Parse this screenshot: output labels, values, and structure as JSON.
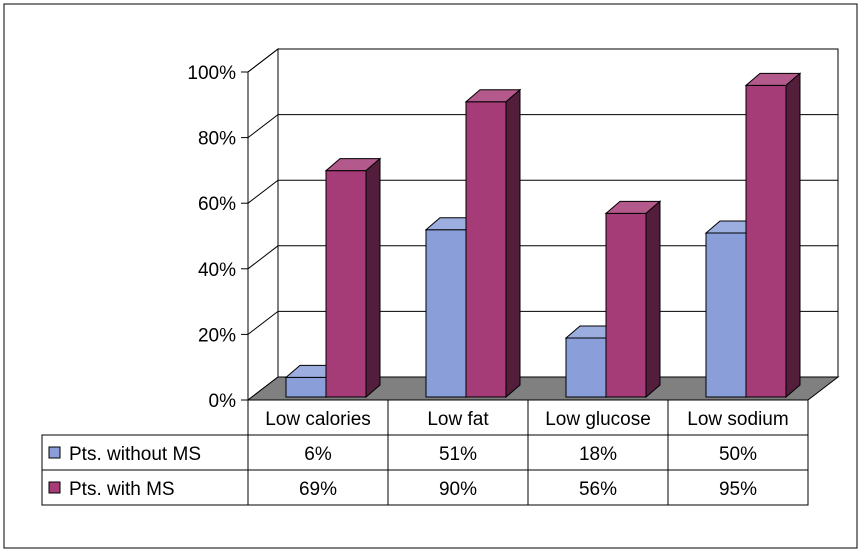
{
  "chart_data": {
    "type": "bar",
    "categories": [
      "Low calories",
      "Low fat",
      "Low glucose",
      "Low sodium"
    ],
    "series": [
      {
        "name": "Pts. without MS",
        "values": [
          6,
          51,
          18,
          50
        ],
        "labels": [
          "6%",
          "51%",
          "18%",
          "50%"
        ],
        "color": "#8a9fd9"
      },
      {
        "name": "Pts. with MS",
        "values": [
          69,
          90,
          56,
          95
        ],
        "labels": [
          "69%",
          "90%",
          "56%",
          "95%"
        ],
        "color": "#a53c78"
      }
    ],
    "yticks": [
      "0%",
      "20%",
      "40%",
      "60%",
      "80%",
      "100%"
    ],
    "ylim": [
      0,
      100
    ],
    "grid": true,
    "data_table": true,
    "floor_color": "#808080"
  }
}
